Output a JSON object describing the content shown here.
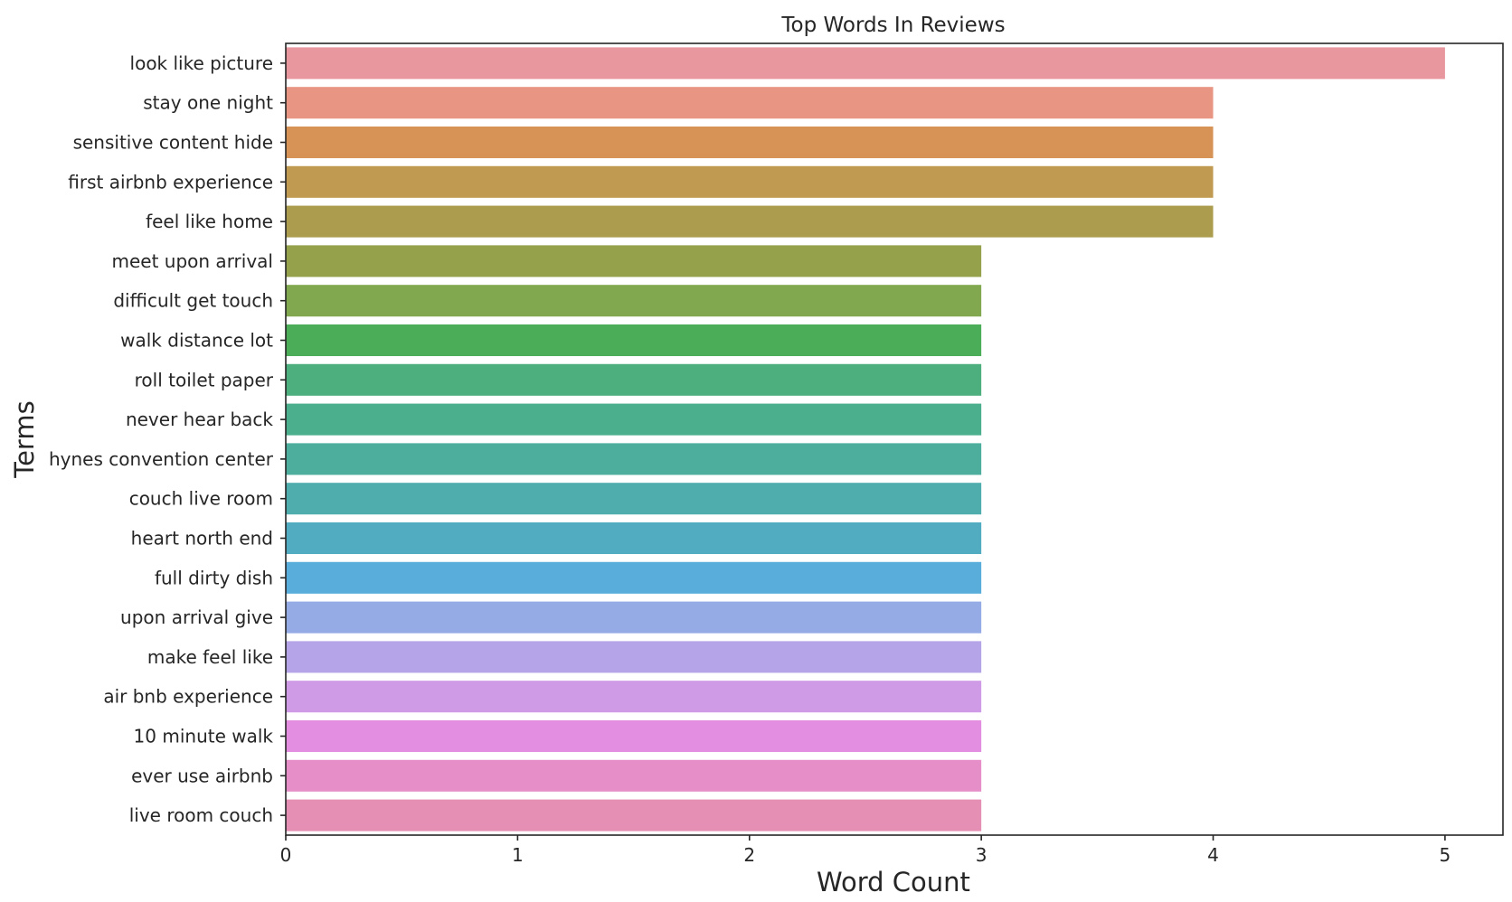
{
  "chart_data": {
    "type": "bar",
    "orientation": "horizontal",
    "title": "Top Words In Reviews",
    "xlabel": "Word Count",
    "ylabel": "Terms",
    "xlim": [
      0,
      5.25
    ],
    "xticks": [
      0,
      1,
      2,
      3,
      4,
      5
    ],
    "grid": false,
    "categories": [
      "look like picture",
      "stay one night",
      "sensitive content hide",
      "first airbnb experience",
      "feel like home",
      "meet upon arrival",
      "difficult get touch",
      "walk distance lot",
      "roll toilet paper",
      "never hear back",
      "hynes convention center",
      "couch live room",
      "heart north end",
      "full dirty dish",
      "upon arrival give",
      "make feel like",
      "air bnb experience",
      "10 minute walk",
      "ever use airbnb",
      "live room couch"
    ],
    "values": [
      5,
      4,
      4,
      4,
      4,
      3,
      3,
      3,
      3,
      3,
      3,
      3,
      3,
      3,
      3,
      3,
      3,
      3,
      3,
      3
    ],
    "colors": [
      "#e8979f",
      "#e89584",
      "#d69355",
      "#bf9a50",
      "#ab9c4e",
      "#96a14b",
      "#82a84f",
      "#4bad57",
      "#4daf7d",
      "#4bae8d",
      "#4dae9d",
      "#4fadae",
      "#51acc1",
      "#59addb",
      "#95abe6",
      "#b5a5e8",
      "#cf9ae6",
      "#e48ee2",
      "#e68ec8",
      "#e58fb4"
    ]
  }
}
